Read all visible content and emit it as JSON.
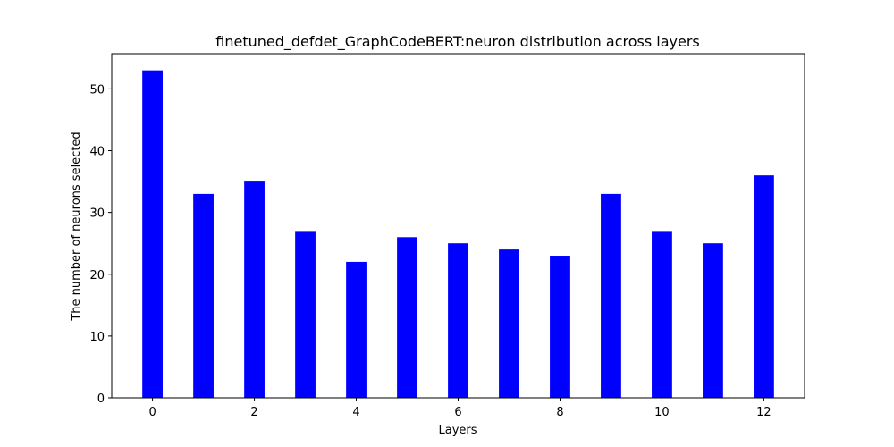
{
  "chart_data": {
    "type": "bar",
    "title": "finetuned_defdet_GraphCodeBERT:neuron distribution across layers",
    "xlabel": "Layers",
    "ylabel": "The number of neurons selected",
    "categories": [
      0,
      1,
      2,
      3,
      4,
      5,
      6,
      7,
      8,
      9,
      10,
      11,
      12
    ],
    "values": [
      53,
      33,
      35,
      27,
      22,
      26,
      25,
      24,
      23,
      33,
      27,
      25,
      36
    ],
    "bar_color": "#0000ff",
    "xlim": [
      -0.8,
      12.8
    ],
    "ylim": [
      0,
      55.7
    ],
    "xticks": [
      0,
      2,
      4,
      6,
      8,
      10,
      12
    ],
    "yticks": [
      0,
      10,
      20,
      30,
      40,
      50
    ],
    "grid": false,
    "legend": "none"
  }
}
